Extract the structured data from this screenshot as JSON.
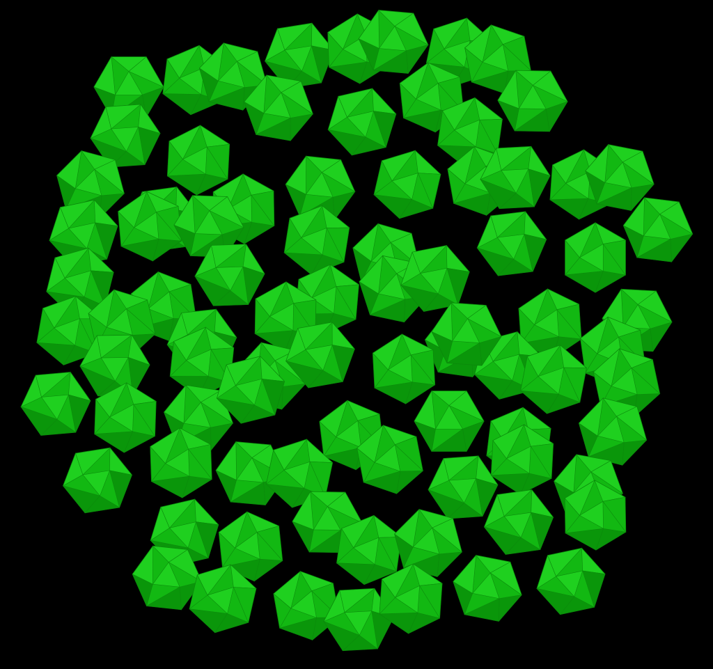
{
  "scene": {
    "subject": "icosahedra-cluster",
    "background_color": "#000000",
    "colors": {
      "light": "#1fd01f",
      "mid": "#12b812",
      "dark": "#0a960a",
      "outline": "#0c8a0c"
    }
  }
}
